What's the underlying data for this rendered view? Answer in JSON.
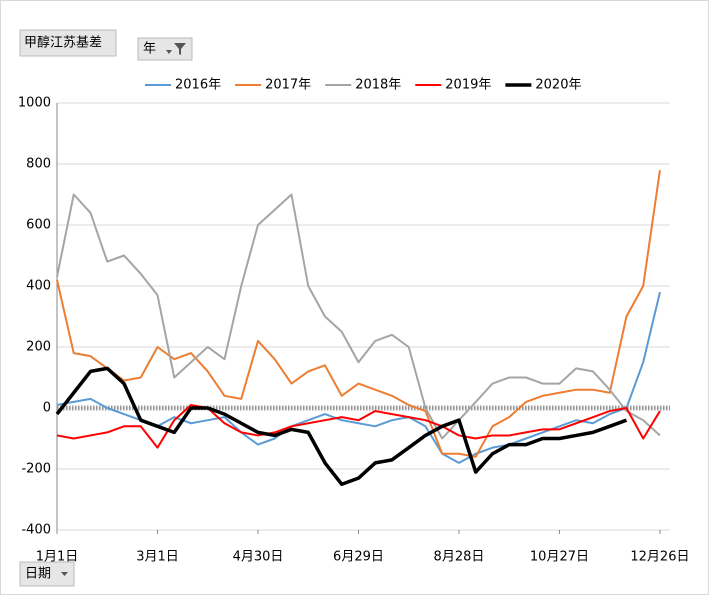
{
  "chart_data": {
    "type": "line",
    "value_field": "甲醇江苏基差",
    "legend_field": "年",
    "axis_field": "日期",
    "x": [
      0,
      10,
      20,
      30,
      40,
      50,
      60,
      70,
      80,
      90,
      100,
      110,
      120,
      130,
      140,
      150,
      160,
      170,
      180,
      190,
      200,
      210,
      220,
      230,
      240,
      250,
      260,
      270,
      280,
      290,
      300,
      310,
      320,
      330,
      340,
      350,
      360
    ],
    "xlim": [
      0,
      366
    ],
    "xticks": [
      {
        "value": 0,
        "label": "1月1日"
      },
      {
        "value": 60,
        "label": "3月1日"
      },
      {
        "value": 120,
        "label": "4月30日"
      },
      {
        "value": 180,
        "label": "6月29日"
      },
      {
        "value": 240,
        "label": "8月28日"
      },
      {
        "value": 300,
        "label": "10月27日"
      },
      {
        "value": 360,
        "label": "12月26日"
      }
    ],
    "ylim": [
      -400,
      1000
    ],
    "yticks": [
      -400,
      -200,
      0,
      200,
      400,
      600,
      800,
      1000
    ],
    "grid": true,
    "series": [
      {
        "name": "2016年",
        "color": "#5b9bd5",
        "width": 2,
        "values": [
          10,
          20,
          30,
          0,
          -20,
          -40,
          -60,
          -30,
          -50,
          -40,
          -30,
          -80,
          -120,
          -100,
          -60,
          -40,
          -20,
          -40,
          -50,
          -60,
          -40,
          -30,
          -60,
          -150,
          -180,
          -150,
          -130,
          -120,
          -100,
          -80,
          -60,
          -40,
          -50,
          -20,
          0,
          150,
          380
        ]
      },
      {
        "name": "2017年",
        "color": "#ed7d31",
        "width": 2,
        "values": [
          420,
          180,
          170,
          130,
          90,
          100,
          200,
          160,
          180,
          120,
          40,
          30,
          220,
          160,
          80,
          120,
          140,
          40,
          80,
          60,
          40,
          10,
          -10,
          -150,
          -150,
          -160,
          -60,
          -30,
          20,
          40,
          50,
          60,
          60,
          50,
          300,
          400,
          780
        ]
      },
      {
        "name": "2018年",
        "color": "#a5a5a5",
        "width": 2,
        "values": [
          430,
          700,
          640,
          480,
          500,
          440,
          370,
          100,
          150,
          200,
          160,
          400,
          600,
          650,
          700,
          400,
          300,
          250,
          150,
          220,
          240,
          200,
          0,
          -100,
          -40,
          20,
          80,
          100,
          100,
          80,
          80,
          130,
          120,
          60,
          -10,
          -40,
          -90
        ]
      },
      {
        "name": "2019年",
        "color": "#ff0000",
        "width": 2,
        "values": [
          -90,
          -100,
          -90,
          -80,
          -60,
          -60,
          -130,
          -40,
          10,
          0,
          -50,
          -80,
          -90,
          -80,
          -60,
          -50,
          -40,
          -30,
          -40,
          -10,
          -20,
          -30,
          -40,
          -60,
          -90,
          -100,
          -90,
          -90,
          -80,
          -70,
          -70,
          -50,
          -30,
          -10,
          0,
          -100,
          -10
        ]
      },
      {
        "name": "2020年",
        "color": "#000000",
        "width": 3.5,
        "values": [
          -20,
          50,
          120,
          130,
          80,
          -40,
          -60,
          -80,
          0,
          0,
          -20,
          -50,
          -80,
          -90,
          -70,
          -80,
          -180,
          -250,
          -230,
          -180,
          -170,
          -130,
          -90,
          -60,
          -40,
          -210,
          -150,
          -120,
          -120,
          -100,
          -100,
          -90,
          -80,
          -60,
          -40,
          null,
          null
        ]
      }
    ]
  }
}
